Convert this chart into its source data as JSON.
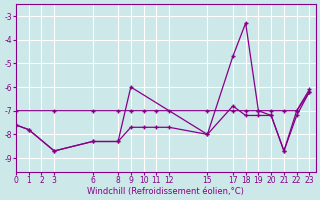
{
  "xlabel": "Windchill (Refroidissement éolien,°C)",
  "background_color": "#cce8e8",
  "line_color": "#880088",
  "grid_color": "#ffffff",
  "xticks": [
    0,
    1,
    2,
    3,
    6,
    8,
    9,
    10,
    11,
    12,
    15,
    17,
    18,
    19,
    20,
    21,
    22,
    23
  ],
  "yticks": [
    -3,
    -4,
    -5,
    -6,
    -7,
    -8,
    -9
  ],
  "xlim": [
    0,
    23.5
  ],
  "ylim": [
    -9.6,
    -2.5
  ],
  "line1_x": [
    0,
    3,
    6,
    8,
    9,
    10,
    11,
    12,
    15,
    17,
    18,
    19,
    20,
    21,
    22,
    23
  ],
  "line1_y": [
    -7.0,
    -7.0,
    -7.0,
    -7.0,
    -7.0,
    -7.0,
    -7.0,
    -7.0,
    -7.0,
    -7.0,
    -7.0,
    -7.0,
    -7.0,
    -7.0,
    -7.0,
    -6.2
  ],
  "line2_x": [
    0,
    1,
    3,
    6,
    8,
    9,
    10,
    11,
    12,
    15,
    17,
    18,
    19,
    20,
    21,
    22,
    23
  ],
  "line2_y": [
    -7.6,
    -7.8,
    -8.7,
    -8.3,
    -8.3,
    -7.7,
    -7.7,
    -7.7,
    -7.7,
    -8.0,
    -6.8,
    -7.2,
    -7.2,
    -7.2,
    -8.7,
    -7.2,
    -6.2
  ],
  "line3_x": [
    0,
    1,
    3,
    6,
    8,
    9,
    15,
    17,
    18,
    19,
    20,
    21,
    22,
    23
  ],
  "line3_y": [
    -7.6,
    -7.8,
    -8.7,
    -8.3,
    -8.3,
    -6.0,
    -8.0,
    -4.7,
    -3.3,
    -7.0,
    -7.2,
    -8.7,
    -7.0,
    -6.1
  ]
}
